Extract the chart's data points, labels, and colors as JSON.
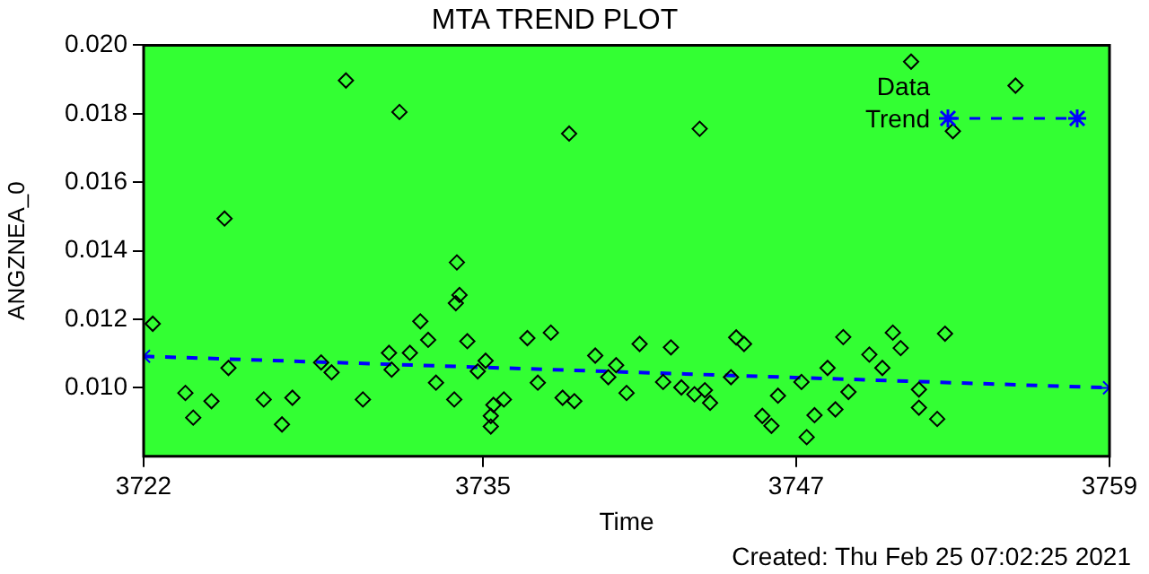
{
  "chart_data": {
    "type": "scatter",
    "title": "MTA TREND PLOT",
    "xlabel": "Time",
    "ylabel": "ANGZNEA_0",
    "annotations": [
      "Created: Thu Feb 25 07:02:25 2021"
    ],
    "xlim": [
      3722,
      3759
    ],
    "xticks": [
      {
        "value": 3722,
        "label": "3722"
      },
      3735,
      3747,
      {
        "value": 3759,
        "label": "3759"
      }
    ],
    "ylim": [
      0.008,
      0.02
    ],
    "yticks": [
      {
        "value": 0.01,
        "label": "0.010"
      },
      {
        "value": 0.012,
        "label": "0.012"
      },
      {
        "value": 0.014,
        "label": "0.014"
      },
      {
        "value": 0.016,
        "label": "0.016"
      },
      {
        "value": 0.018,
        "label": "0.018"
      },
      {
        "value": 0.02,
        "label": "0.020"
      }
    ],
    "grid": false,
    "legend": "top right",
    "series": [
      {
        "name": "Data",
        "marker": "diamond",
        "color": "#000000",
        "x": [
          3722.35,
          3723.6,
          3723.9,
          3724.6,
          3725.1,
          3725.25,
          3726.6,
          3727.3,
          3727.7,
          3728.8,
          3729.2,
          3729.75,
          3730.4,
          3731.4,
          3731.5,
          3731.8,
          3732.2,
          3732.6,
          3732.9,
          3733.2,
          3733.9,
          3733.96,
          3734.0,
          3734.1,
          3734.4,
          3734.8,
          3735.1,
          3735.3,
          3735.3,
          3735.4,
          3735.8,
          3736.7,
          3737.1,
          3737.6,
          3738.05,
          3738.3,
          3738.5,
          3739.3,
          3739.8,
          3740.1,
          3740.5,
          3741.0,
          3741.9,
          3742.2,
          3742.6,
          3743.1,
          3743.3,
          3743.5,
          3743.7,
          3744.5,
          3744.7,
          3745.0,
          3745.7,
          3746.05,
          3746.3,
          3747.2,
          3747.4,
          3747.7,
          3748.2,
          3748.5,
          3748.8,
          3749.0,
          3749.8,
          3750.3,
          3750.7,
          3751.0,
          3751.4,
          3751.7,
          3751.7,
          3752.4,
          3752.7,
          3753.0,
          3755.4
        ],
        "values": [
          0.01187,
          0.00985,
          0.00913,
          0.00961,
          0.01494,
          0.01058,
          0.00966,
          0.00893,
          0.00971,
          0.01074,
          0.01045,
          0.01897,
          0.00966,
          0.01102,
          0.01053,
          0.01805,
          0.01102,
          0.01194,
          0.0114,
          0.01015,
          0.00966,
          0.01247,
          0.01366,
          0.01271,
          0.01136,
          0.01048,
          0.01079,
          0.00887,
          0.00918,
          0.0095,
          0.00966,
          0.01145,
          0.01015,
          0.01161,
          0.00971,
          0.01742,
          0.00961,
          0.01094,
          0.01031,
          0.01066,
          0.00985,
          0.01128,
          0.01017,
          0.01118,
          0.01001,
          0.00981,
          0.01756,
          0.00993,
          0.00956,
          0.01031,
          0.01147,
          0.01128,
          0.00918,
          0.00889,
          0.00977,
          0.01017,
          0.00856,
          0.0092,
          0.01058,
          0.00937,
          0.01148,
          0.00988,
          0.01097,
          0.01058,
          0.01161,
          0.01116,
          0.01952,
          0.00995,
          0.00942,
          0.00909,
          0.01158,
          0.01749,
          0.01882
        ]
      },
      {
        "name": "Trend",
        "type": "line",
        "marker": "cross",
        "line_style": "dashed",
        "color": "#0000ff",
        "x": [
          3722,
          3759
        ],
        "values": [
          0.01092,
          0.01
        ]
      }
    ]
  }
}
